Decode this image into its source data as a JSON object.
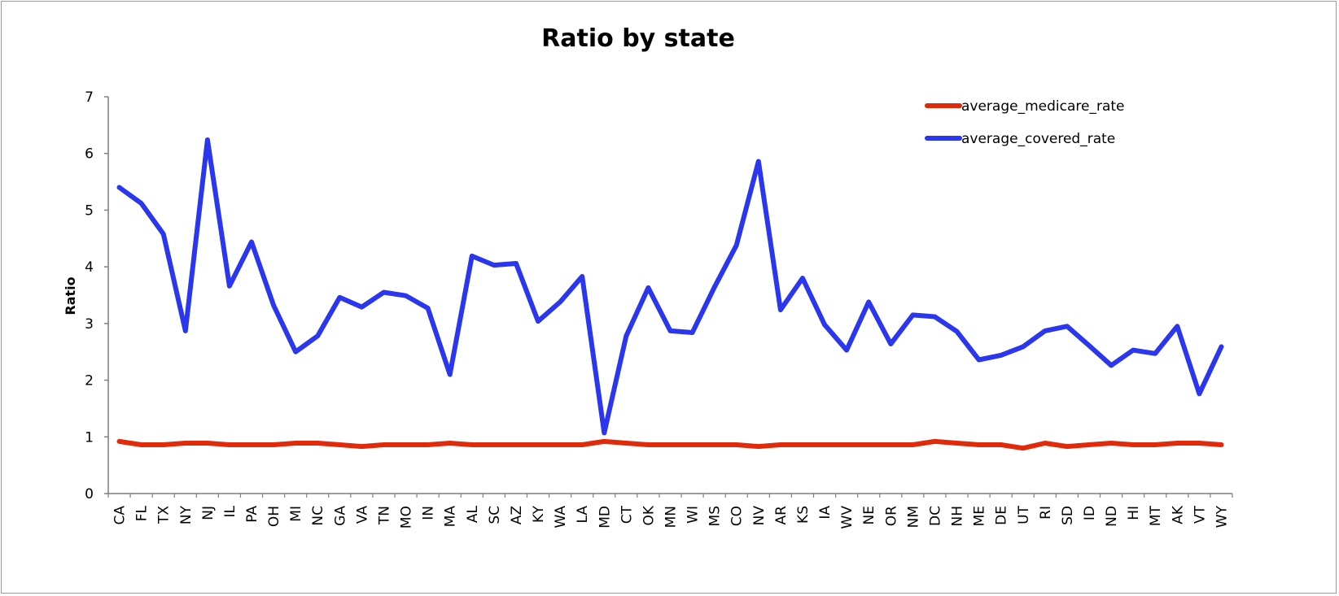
{
  "chart_data": {
    "type": "line",
    "title": "Ratio by state",
    "xlabel": "",
    "ylabel": "Ratio",
    "ylim": [
      0,
      7
    ],
    "yticks": [
      "0",
      "1",
      "2",
      "3",
      "4",
      "5",
      "6",
      "7"
    ],
    "grid": false,
    "legend_position": "top-right",
    "categories": [
      "CA",
      "FL",
      "TX",
      "NY",
      "NJ",
      "IL",
      "PA",
      "OH",
      "MI",
      "NC",
      "GA",
      "VA",
      "TN",
      "MO",
      "IN",
      "MA",
      "AL",
      "SC",
      "AZ",
      "KY",
      "WA",
      "LA",
      "MD",
      "CT",
      "OK",
      "MN",
      "WI",
      "MS",
      "CO",
      "NV",
      "AR",
      "KS",
      "IA",
      "WV",
      "NE",
      "OR",
      "NM",
      "DC",
      "NH",
      "ME",
      "DE",
      "UT",
      "RI",
      "SD",
      "ID",
      "ND",
      "HI",
      "MT",
      "AK",
      "VT",
      "WY"
    ],
    "series": [
      {
        "name": "average_medicare_rate",
        "color": "#e02a0a",
        "values": [
          0.92,
          0.86,
          0.86,
          0.89,
          0.89,
          0.86,
          0.86,
          0.86,
          0.89,
          0.89,
          0.86,
          0.83,
          0.86,
          0.86,
          0.86,
          0.89,
          0.86,
          0.86,
          0.86,
          0.86,
          0.86,
          0.86,
          0.92,
          0.89,
          0.86,
          0.86,
          0.86,
          0.86,
          0.86,
          0.83,
          0.86,
          0.86,
          0.86,
          0.86,
          0.86,
          0.86,
          0.86,
          0.92,
          0.89,
          0.86,
          0.86,
          0.8,
          0.89,
          0.83,
          0.86,
          0.89,
          0.86,
          0.86,
          0.89,
          0.89,
          0.86
        ]
      },
      {
        "name": "average_covered_rate",
        "color": "#2a37ee",
        "values": [
          5.4,
          5.12,
          4.58,
          2.87,
          6.24,
          3.66,
          4.44,
          3.32,
          2.5,
          2.78,
          3.46,
          3.29,
          3.55,
          3.49,
          3.27,
          2.1,
          4.19,
          4.03,
          4.06,
          3.04,
          3.38,
          3.83,
          1.07,
          2.78,
          3.63,
          2.87,
          2.84,
          3.64,
          4.38,
          5.86,
          3.24,
          3.8,
          2.98,
          2.53,
          3.38,
          2.64,
          3.15,
          3.12,
          2.86,
          2.36,
          2.44,
          2.59,
          2.87,
          2.95,
          2.61,
          2.26,
          2.53,
          2.47,
          2.95,
          1.76,
          2.59
        ]
      }
    ]
  }
}
